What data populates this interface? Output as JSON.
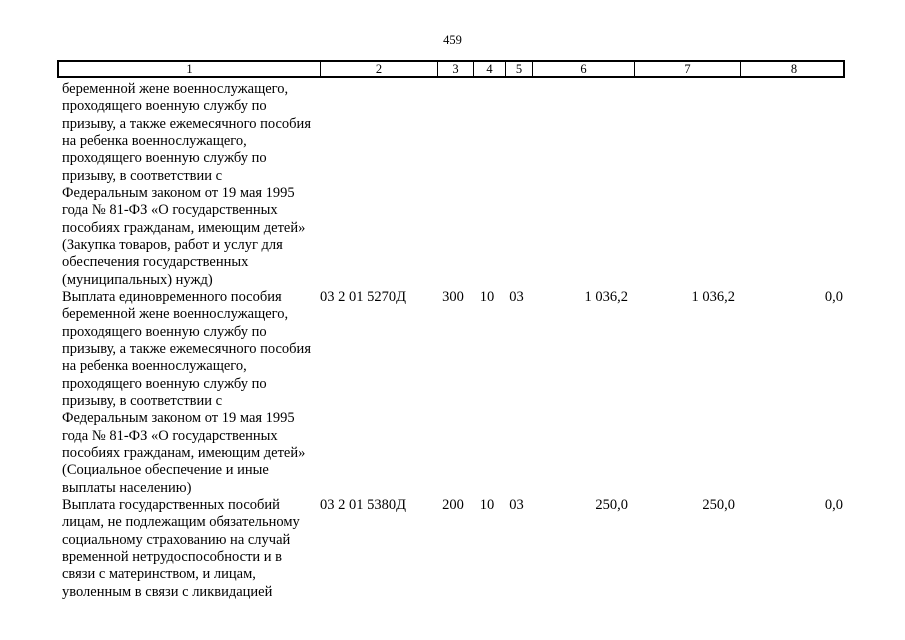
{
  "page": {
    "number": "459"
  },
  "table": {
    "column_headers": [
      "1",
      "2",
      "3",
      "4",
      "5",
      "6",
      "7",
      "8"
    ],
    "rows": [
      {
        "name": "беременной жене военнослужащего,\nпроходящего военную службу по\nпризыву, а также ежемесячного пособия\nна ребенка военнослужащего,\nпроходящего военную службу по\nпризыву, в соответствии с\nФедеральным законом от 19 мая 1995\nгода № 81-ФЗ «О государственных\nпособиях гражданам, имеющим детей»\n(Закупка товаров, работ и услуг для\nобеспечения государственных\n(муниципальных) нужд)",
        "code": "",
        "col3": "",
        "col4": "",
        "col5": "",
        "col6": "",
        "col7": "",
        "col8": ""
      },
      {
        "name": "Выплата единовременного пособия\nбеременной жене военнослужащего,\nпроходящего военную службу по\nпризыву, а также ежемесячного пособия\nна ребенка военнослужащего,\nпроходящего военную службу по\nпризыву, в соответствии с\nФедеральным законом от 19 мая 1995\nгода № 81-ФЗ «О государственных\nпособиях гражданам, имеющим детей»\n(Социальное обеспечение и иные\nвыплаты населению)",
        "code": "03 2 01 5270Д",
        "col3": "300",
        "col4": "10",
        "col5": "03",
        "col6": "1 036,2",
        "col7": "1 036,2",
        "col8": "0,0"
      },
      {
        "name": "Выплата государственных пособий\nлицам, не подлежащим обязательному\nсоциальному страхованию на случай\nвременной нетрудоспособности и в\nсвязи с материнством, и лицам,\nуволенным в связи с ликвидацией",
        "code": "03 2 01 5380Д",
        "col3": "200",
        "col4": "10",
        "col5": "03",
        "col6": "250,0",
        "col7": "250,0",
        "col8": "0,0"
      }
    ]
  }
}
